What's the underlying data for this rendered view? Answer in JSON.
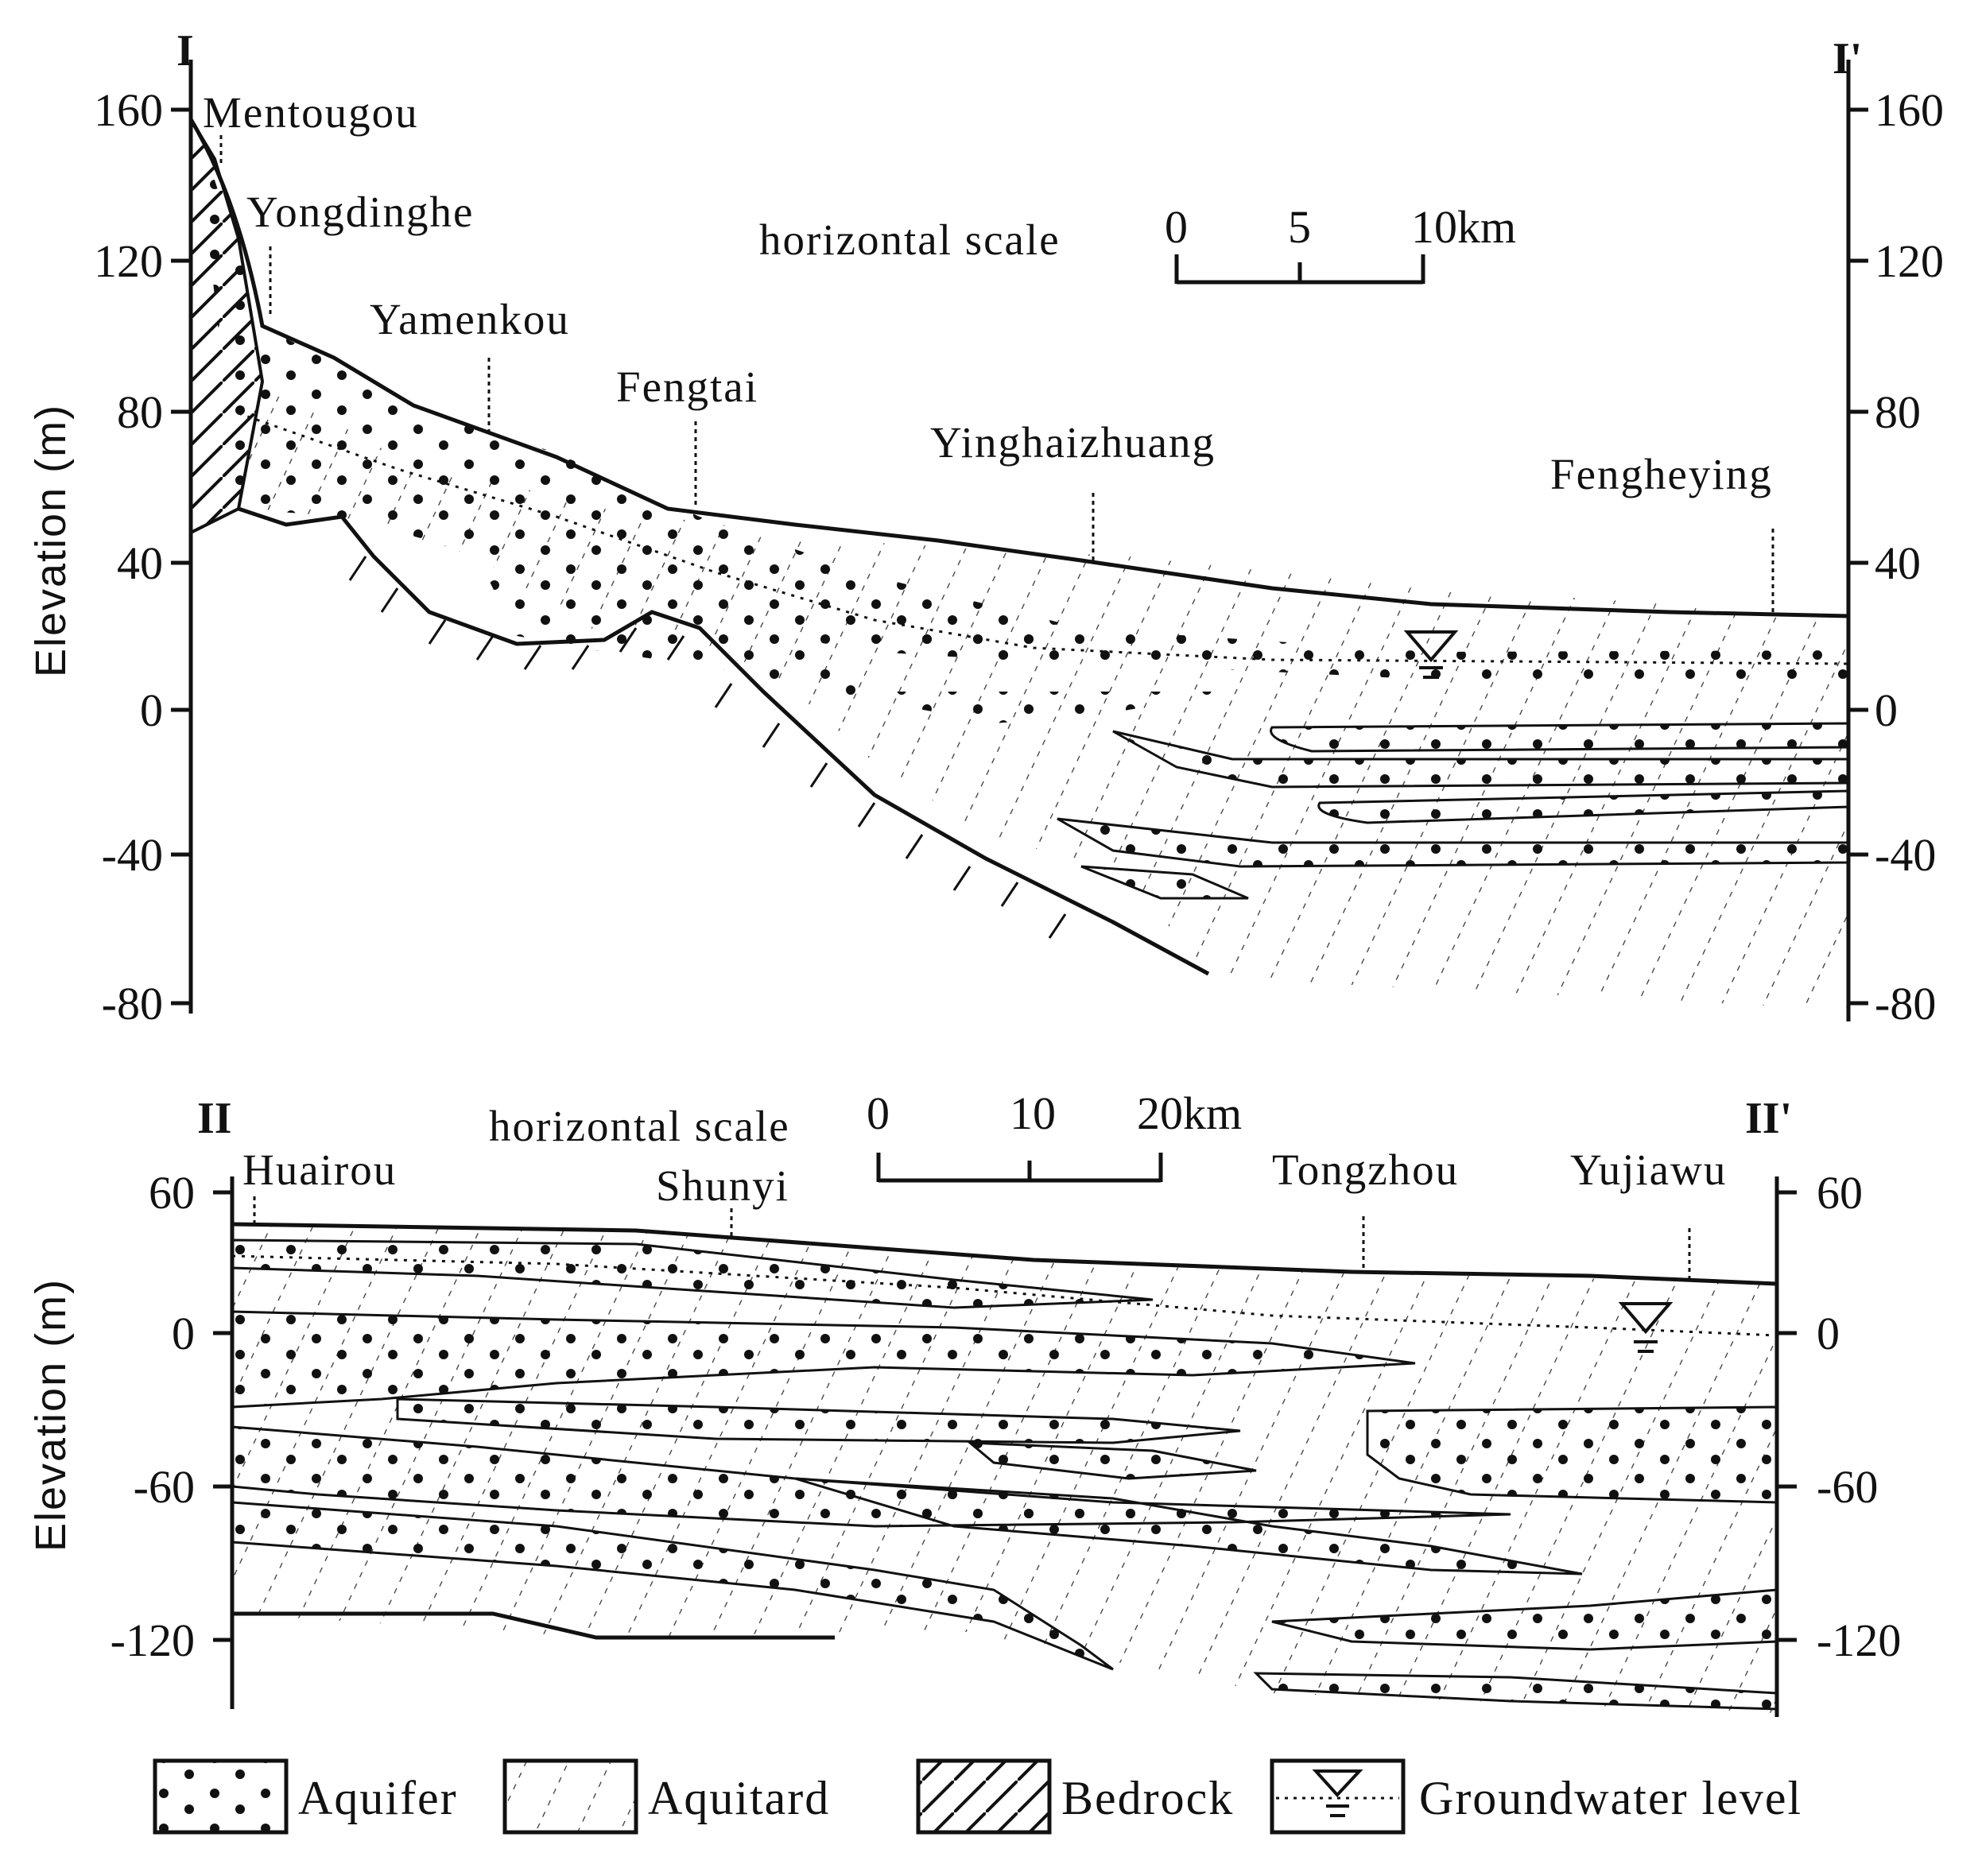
{
  "section1": {
    "start_label": "I",
    "end_label": "I'",
    "y_axis_title": "Elevation (m)",
    "y_ticks_left": [
      "160",
      "120",
      "80",
      "40",
      "0",
      "-40",
      "-80"
    ],
    "y_ticks_right": [
      "160",
      "120",
      "80",
      "40",
      "0",
      "-40",
      "-80"
    ],
    "places": [
      "Mentougou",
      "Yongdinghe",
      "Yamenkou",
      "Fengtai",
      "Yinghaizhuang",
      "Fengheying"
    ],
    "scale_label": "horizontal scale",
    "scale_ticks": [
      "0",
      "5",
      "10km"
    ]
  },
  "section2": {
    "start_label": "II",
    "end_label": "II'",
    "y_axis_title": "Elevation (m)",
    "y_ticks_left": [
      "60",
      "0",
      "-60",
      "-120"
    ],
    "y_ticks_right": [
      "60",
      "0",
      "-60",
      "-120"
    ],
    "places": [
      "Huairou",
      "Shunyi",
      "Tongzhou",
      "Yujiawu"
    ],
    "scale_label": "horizontal scale",
    "scale_ticks": [
      "0",
      "10",
      "20km"
    ]
  },
  "legend": {
    "aquifer": "Aquifer",
    "aquitard": "Aquitard",
    "bedrock": "Bedrock",
    "groundwater": "Groundwater level"
  }
}
